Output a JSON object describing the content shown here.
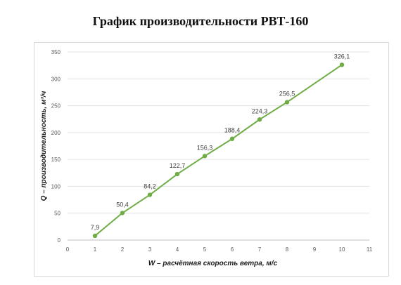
{
  "title": "График производительности РВТ-160",
  "chart_data": {
    "type": "line",
    "title": "График производительности РВТ-160",
    "xlabel": "W – расчётная скорость ветра, м/с",
    "ylabel": "Q – производительность, м³/ч",
    "xlim": [
      0,
      11
    ],
    "ylim": [
      0,
      350
    ],
    "xticks": [
      0,
      1,
      2,
      3,
      4,
      5,
      6,
      7,
      8,
      9,
      10,
      11
    ],
    "yticks": [
      0,
      50,
      100,
      150,
      200,
      250,
      300,
      350
    ],
    "grid": "horizontal",
    "color": "#70ad47",
    "series": [
      {
        "x": [
          1,
          2,
          3,
          4,
          5,
          6,
          7,
          8,
          10
        ],
        "values": [
          7.9,
          50.4,
          84.2,
          122.7,
          156.3,
          188.4,
          224.3,
          256.5,
          326.1
        ],
        "labels": [
          "7,9",
          "50,4",
          "84,2",
          "122,7",
          "156,3",
          "188,4",
          "224,3",
          "256,5",
          "326,1"
        ]
      }
    ]
  }
}
